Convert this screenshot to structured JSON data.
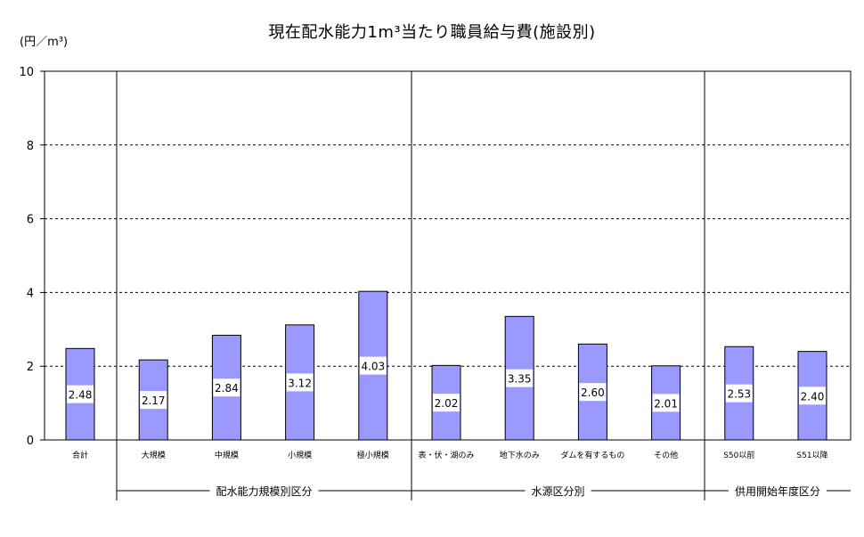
{
  "chart_data": {
    "type": "bar",
    "title": "現在配水能力1m³当たり職員給与費(施設別)",
    "ylabel": "(円／m³)",
    "ylim": [
      0,
      10
    ],
    "yticks": [
      "0",
      "2",
      "4",
      "6",
      "8",
      "10"
    ],
    "grid": "dashed-horizontal",
    "categories": [
      "合計",
      "大規模",
      "中規模",
      "小規模",
      "極小規模",
      "表・伏・湖のみ",
      "地下水のみ",
      "ダムを有するもの",
      "その他",
      "S50以前",
      "S51以降"
    ],
    "values": [
      2.48,
      2.17,
      2.84,
      3.12,
      4.03,
      2.02,
      3.35,
      2.6,
      2.01,
      2.53,
      2.4
    ],
    "value_labels": [
      "2.48",
      "2.17",
      "2.84",
      "3.12",
      "4.03",
      "2.02",
      "3.35",
      "2.60",
      "2.01",
      "2.53",
      "2.40"
    ],
    "groups": [
      {
        "label": "配水能力規模別区分",
        "from": 1,
        "to": 4
      },
      {
        "label": "水源区分別",
        "from": 5,
        "to": 8
      },
      {
        "label": "供用開始年度区分",
        "from": 9,
        "to": 10
      }
    ],
    "bar_color": "#9999ff"
  }
}
